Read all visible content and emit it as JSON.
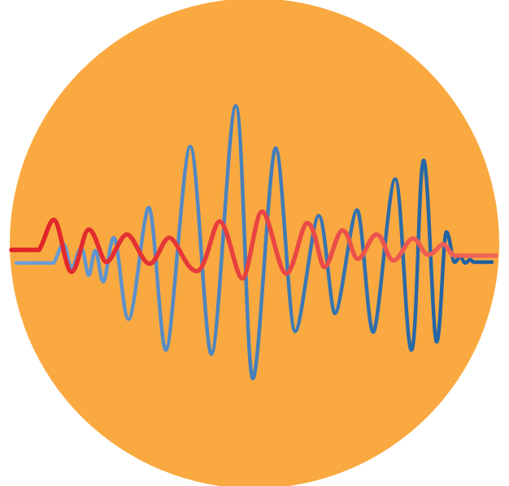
{
  "logo": {
    "background_color": "#FAA940",
    "waves": [
      {
        "name": "blue-wave",
        "gradient_start": "#6FA0D8",
        "gradient_end": "#1B5E9E"
      },
      {
        "name": "red-wave",
        "gradient_start": "#E02027",
        "gradient_end": "#F0665A"
      }
    ]
  }
}
